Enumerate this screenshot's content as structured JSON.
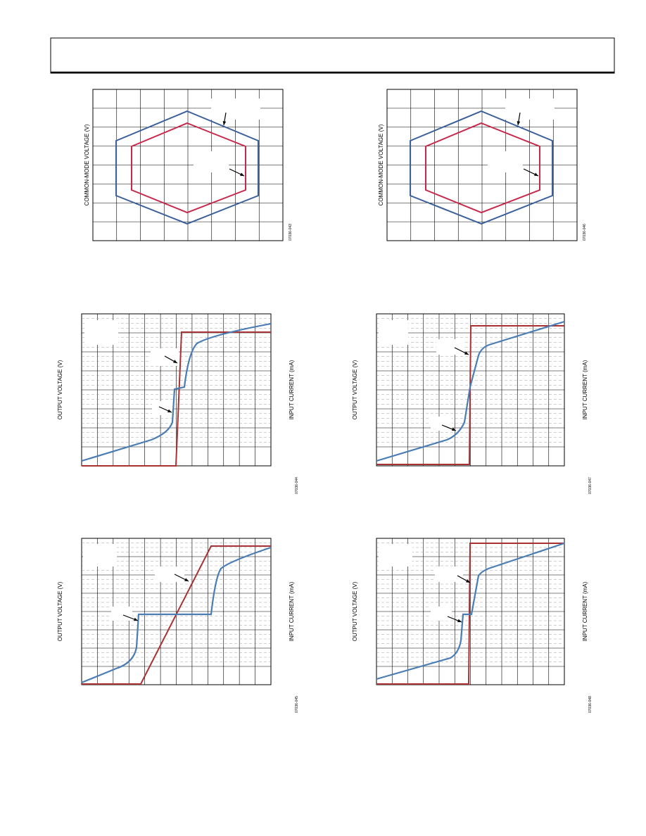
{
  "figures": [
    {
      "y_label": "COMMON-MODE VOLTAGE (V)",
      "code": "07036-043"
    },
    {
      "y_label": "COMMON-MODE VOLTAGE (V)",
      "code": "07036-046"
    },
    {
      "y_label": "OUTPUT VOLTAGE (V)",
      "y2_label": "INPUT CURRENT (mA)",
      "code": "07036-044"
    },
    {
      "y_label": "OUTPUT VOLTAGE (V)",
      "y2_label": "INPUT CURRENT (mA)",
      "code": "07036-047"
    },
    {
      "y_label": "OUTPUT VOLTAGE (V)",
      "y2_label": "INPUT CURRENT (mA)",
      "code": "07036-045"
    },
    {
      "y_label": "OUTPUT VOLTAGE (V)",
      "y2_label": "INPUT CURRENT (mA)",
      "code": "07036-048"
    }
  ]
}
